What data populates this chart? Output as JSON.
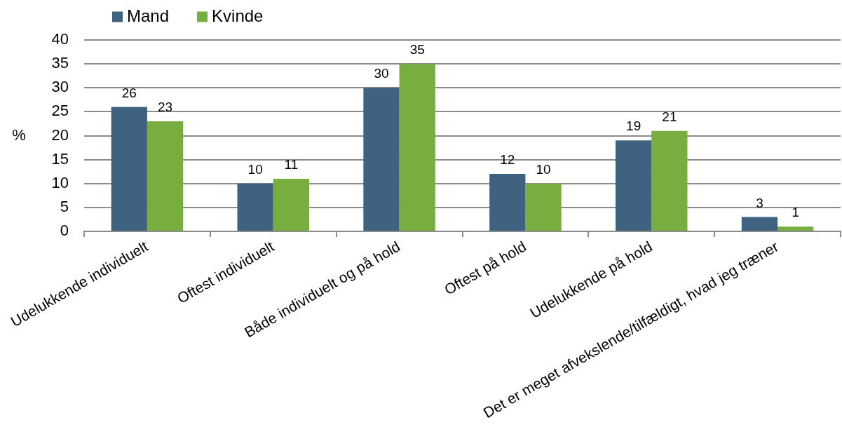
{
  "chart_data": {
    "type": "bar",
    "categories": [
      "Udelukkende individuelt",
      "Oftest individuelt",
      "Både individuelt og på hold",
      "Oftest på hold",
      "Udelukkende på hold",
      "Det er meget afvekslende/tilfældigt, hvad jeg træner"
    ],
    "series": [
      {
        "name": "Mand",
        "color": "#3e6280",
        "values": [
          26,
          10,
          30,
          12,
          19,
          3
        ]
      },
      {
        "name": "Kvinde",
        "color": "#78ad3f",
        "values": [
          23,
          11,
          35,
          10,
          21,
          1
        ]
      }
    ],
    "ylabel": "%",
    "ylim": [
      0,
      40
    ],
    "yticks": [
      0,
      5,
      10,
      15,
      20,
      25,
      30,
      35,
      40
    ],
    "grid": "y",
    "legend": "top left",
    "data_labels": true
  }
}
